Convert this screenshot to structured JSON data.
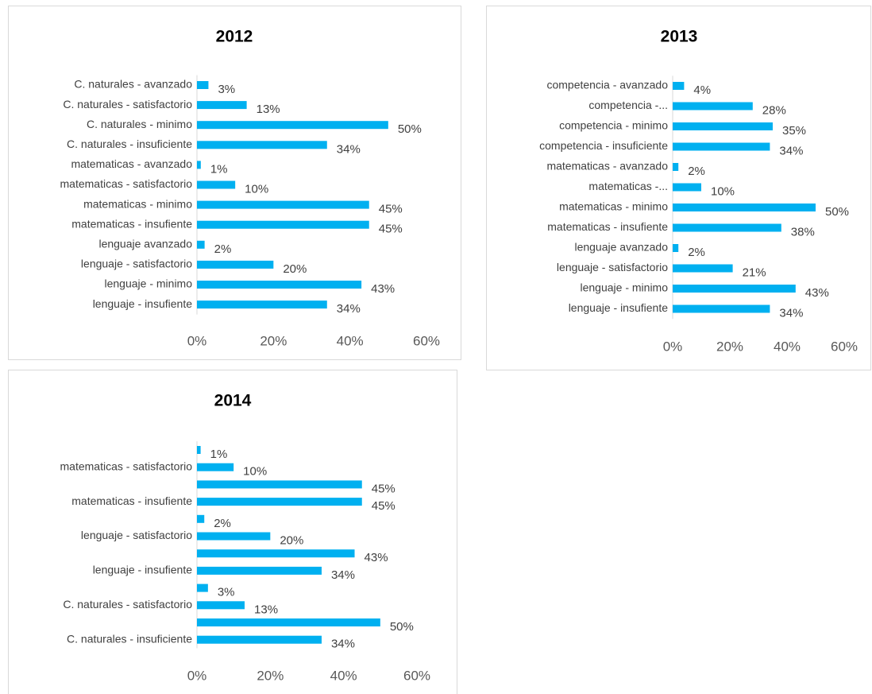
{
  "chart_data": [
    {
      "type": "bar",
      "title": "2012",
      "color": "#00b0f0",
      "categories": [
        "C. naturales - avanzado",
        "C. naturales - satisfactorio",
        "C. naturales - minimo",
        "C. naturales - insuficiente",
        "matematicas - avanzado",
        "matematicas - satisfactorio",
        "matematicas - minimo",
        "matematicas - insufiente",
        "lenguaje avanzado",
        "lenguaje - satisfactorio",
        "lenguaje - minimo",
        "lenguaje - insufiente"
      ],
      "values": [
        3,
        13,
        50,
        34,
        1,
        10,
        45,
        45,
        2,
        20,
        43,
        34
      ],
      "value_labels": [
        "3%",
        "13%",
        "50%",
        "34%",
        "1%",
        "10%",
        "45%",
        "45%",
        "2%",
        "20%",
        "43%",
        "34%"
      ],
      "xlim": [
        0,
        60
      ],
      "xticks": [
        {
          "value": 0,
          "label": "0%"
        },
        {
          "value": 20,
          "label": "20%"
        },
        {
          "value": 40,
          "label": "40%"
        },
        {
          "value": 60,
          "label": "60%"
        }
      ]
    },
    {
      "type": "bar",
      "title": "2013",
      "color": "#00b0f0",
      "categories": [
        "competencia - avanzado",
        "competencia -...",
        "competencia - minimo",
        "competencia - insuficiente",
        "matematicas - avanzado",
        "matematicas -...",
        "matematicas - minimo",
        "matematicas - insufiente",
        "lenguaje avanzado",
        "lenguaje - satisfactorio",
        "lenguaje - minimo",
        "lenguaje - insufiente"
      ],
      "values": [
        4,
        28,
        35,
        34,
        2,
        10,
        50,
        38,
        2,
        21,
        43,
        34
      ],
      "value_labels": [
        "4%",
        "28%",
        "35%",
        "34%",
        "2%",
        "10%",
        "50%",
        "38%",
        "2%",
        "21%",
        "43%",
        "34%"
      ],
      "xlim": [
        0,
        60
      ],
      "xticks": [
        {
          "value": 0,
          "label": "0%"
        },
        {
          "value": 20,
          "label": "20%"
        },
        {
          "value": 40,
          "label": "40%"
        },
        {
          "value": 60,
          "label": "60%"
        }
      ]
    },
    {
      "type": "bar",
      "title": "2014",
      "color": "#00b0f0",
      "categories": [
        null,
        "matematicas - satisfactorio",
        null,
        "matematicas - insufiente",
        null,
        "lenguaje - satisfactorio",
        null,
        "lenguaje - insufiente",
        null,
        "C. naturales - satisfactorio",
        null,
        "C. naturales - insuficiente"
      ],
      "values": [
        1,
        10,
        45,
        45,
        2,
        20,
        43,
        34,
        3,
        13,
        50,
        34
      ],
      "value_labels": [
        "1%",
        "10%",
        "45%",
        "45%",
        "2%",
        "20%",
        "43%",
        "34%",
        "3%",
        "13%",
        "50%",
        "34%"
      ],
      "xlim": [
        0,
        60
      ],
      "xticks": [
        {
          "value": 0,
          "label": "0%"
        },
        {
          "value": 20,
          "label": "20%"
        },
        {
          "value": 40,
          "label": "40%"
        },
        {
          "value": 60,
          "label": "60%"
        }
      ]
    }
  ]
}
